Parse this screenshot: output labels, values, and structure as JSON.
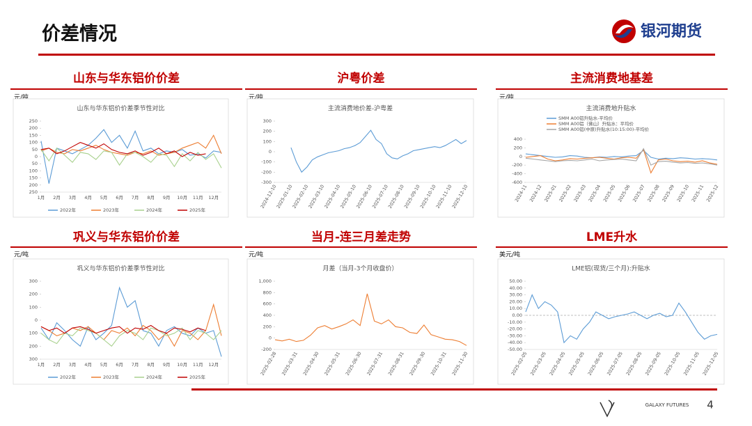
{
  "header": {
    "title": "价差情况",
    "brand": "银河期货"
  },
  "chart_data": [
    {
      "type": "line",
      "section": "山东与华东铝价价差",
      "unit": "元/吨",
      "title": "山东与华东铝价价差季节性对比",
      "categories": [
        "1月",
        null,
        "2月",
        null,
        "3月",
        null,
        "4月",
        null,
        "5月",
        null,
        "6月",
        null,
        "7月",
        null,
        "8月",
        null,
        "9月",
        null,
        "10月",
        null,
        "11月",
        null,
        "12月",
        null
      ],
      "ylim": [
        -250,
        250
      ],
      "yticks": [
        {
          "value": -250,
          "label": "250"
        },
        {
          "value": -200,
          "label": "200"
        },
        {
          "value": -150,
          "label": "150"
        },
        {
          "value": -100,
          "label": "100"
        },
        {
          "value": -50,
          "label": "50"
        },
        0,
        50,
        100,
        150,
        200,
        250
      ],
      "legend": "bottom",
      "series": [
        {
          "name": "2022年",
          "color": "#5b9bd5",
          "values": [
            110,
            -190,
            60,
            40,
            20,
            50,
            80,
            130,
            190,
            100,
            150,
            60,
            180,
            40,
            60,
            20,
            40,
            30,
            50,
            10,
            20,
            -10,
            40,
            30
          ]
        },
        {
          "name": "2023年",
          "color": "#ed7d31",
          "values": [
            40,
            60,
            30,
            20,
            50,
            40,
            60,
            80,
            50,
            30,
            20,
            10,
            30,
            20,
            40,
            10,
            20,
            30,
            60,
            80,
            100,
            60,
            150,
            20
          ]
        },
        {
          "name": "2024年",
          "color": "#a9d18e",
          "values": [
            50,
            -30,
            60,
            10,
            -40,
            30,
            20,
            -20,
            40,
            30,
            -60,
            20,
            30,
            0,
            -40,
            20,
            10,
            -70,
            20,
            -30,
            30,
            -20,
            20,
            -80
          ]
        },
        {
          "name": "2025年",
          "color": "#c00000",
          "values": [
            50,
            60,
            20,
            40,
            70,
            100,
            80,
            60,
            90,
            50,
            30,
            20,
            40,
            10,
            30,
            60,
            20,
            40,
            0,
            30,
            10,
            20,
            null,
            null
          ]
        }
      ]
    },
    {
      "type": "line",
      "section": "沪粤价差",
      "unit": "元/吨",
      "title": "主流消费地价差-沪粤差",
      "categories": [
        "2024-12-10",
        null,
        null,
        "2025-01-10",
        null,
        null,
        "2025-02-10",
        null,
        null,
        "2025-03-10",
        null,
        null,
        "2025-04-10",
        null,
        null,
        "2025-05-10",
        null,
        null,
        "2025-06-10",
        null,
        null,
        "2025-07-10",
        null,
        null,
        "2025-08-10",
        null,
        null,
        "2025-09-10",
        null,
        null,
        "2025-10-10",
        null,
        null,
        "2025-11-10",
        null,
        null,
        "2025-12-10"
      ],
      "ylim": [
        -300,
        300
      ],
      "yticks": [
        -300,
        -200,
        -100,
        0,
        100,
        200,
        300
      ],
      "color": "#5b9bd5",
      "values": [
        null,
        null,
        null,
        40,
        -100,
        -200,
        -150,
        -80,
        -50,
        -30,
        -10,
        0,
        10,
        30,
        40,
        60,
        90,
        150,
        210,
        120,
        80,
        -20,
        -60,
        -70,
        -40,
        -20,
        10,
        20,
        30,
        40,
        50,
        40,
        60,
        90,
        120,
        80,
        110
      ]
    },
    {
      "type": "line",
      "section": "主流消费地基差",
      "unit": "元/吨",
      "title": "主流消费地升贴水",
      "categories": [
        "2024-11",
        null,
        "2024-12",
        null,
        "2025-01",
        null,
        "2025-02",
        null,
        "2025-03",
        null,
        "2025-04",
        null,
        "2025-05",
        null,
        "2025-06",
        null,
        "2025-07",
        null,
        "2025-08",
        null,
        "2025-09",
        null,
        "2025-10",
        null,
        "2025-11",
        null,
        "2025-12"
      ],
      "ylim": [
        -600,
        400
      ],
      "yticks": [
        -600,
        -400,
        -200,
        0,
        200,
        400
      ],
      "legend": "top-left",
      "series": [
        {
          "name": "SMM A00铝升贴水-平均价",
          "color": "#5b9bd5",
          "values": [
            60,
            40,
            20,
            0,
            -20,
            -10,
            20,
            10,
            -20,
            -30,
            -10,
            -20,
            0,
            -10,
            10,
            20,
            140,
            -20,
            -60,
            -40,
            -50,
            -30,
            -40,
            -60,
            -50,
            -60,
            -80
          ]
        },
        {
          "name": "SMM A00铝（佛山）升贴水：平均价",
          "color": "#ed7d31",
          "values": [
            -20,
            0,
            20,
            -60,
            -100,
            -80,
            -50,
            -60,
            -40,
            -30,
            -20,
            -40,
            -60,
            -30,
            -20,
            -40,
            160,
            -380,
            -80,
            -60,
            -100,
            -120,
            -110,
            -130,
            -100,
            -150,
            -180
          ]
        },
        {
          "name": "SMM A00铝(中原)升贴水(10:15:00)-平均价",
          "color": "#a5a5a5",
          "values": [
            -40,
            -60,
            -80,
            -100,
            -120,
            -100,
            -90,
            -100,
            -80,
            -60,
            -100,
            -80,
            -70,
            -60,
            -80,
            -100,
            180,
            -200,
            -120,
            -110,
            -130,
            -150,
            -140,
            -160,
            -150,
            -170,
            -200
          ]
        }
      ]
    },
    {
      "type": "line",
      "section": "巩义与华东铝价价差",
      "unit": "元/吨",
      "title": "巩义与华东铝价价差季节性对比",
      "categories": [
        "1月",
        null,
        "2月",
        null,
        "3月",
        null,
        "4月",
        null,
        "5月",
        null,
        "6月",
        null,
        "7月",
        null,
        "8月",
        null,
        "9月",
        null,
        "10月",
        null,
        "11月",
        null,
        "12月",
        null
      ],
      "ylim": [
        -300,
        300
      ],
      "yticks": [
        {
          "value": -300,
          "label": "300"
        },
        {
          "value": -200,
          "label": "200"
        },
        {
          "value": -100,
          "label": "100"
        },
        0,
        100,
        200,
        300
      ],
      "legend": "bottom",
      "series": [
        {
          "name": "2022年",
          "color": "#5b9bd5",
          "values": [
            -60,
            -150,
            -20,
            -80,
            -150,
            -200,
            -50,
            -150,
            -100,
            -40,
            250,
            100,
            150,
            -80,
            -100,
            -200,
            -80,
            -50,
            -100,
            -120,
            -60,
            -100,
            -80,
            -280
          ]
        },
        {
          "name": "2023年",
          "color": "#ed7d31",
          "values": [
            -50,
            -80,
            -120,
            -100,
            -60,
            -80,
            -50,
            -100,
            -150,
            -80,
            -100,
            -60,
            -120,
            -40,
            -80,
            -150,
            -100,
            -200,
            -80,
            -100,
            -150,
            -80,
            120,
            -120
          ]
        },
        {
          "name": "2024年",
          "color": "#a9d18e",
          "values": [
            -100,
            -150,
            -180,
            -100,
            -120,
            -60,
            -80,
            -100,
            -150,
            -200,
            -120,
            -80,
            -100,
            -150,
            -60,
            -80,
            -120,
            -100,
            -60,
            -150,
            -80,
            -100,
            -150,
            -80
          ]
        },
        {
          "name": "2025年",
          "color": "#c00000",
          "values": [
            -50,
            -80,
            -60,
            -100,
            -60,
            -50,
            -70,
            -100,
            -80,
            -60,
            -50,
            -100,
            -60,
            -70,
            -40,
            -80,
            -100,
            -60,
            -70,
            -90,
            -60,
            -80,
            null,
            null
          ]
        }
      ]
    },
    {
      "type": "line",
      "section": "当月-连三月差走势",
      "unit": "元/吨",
      "title": "月差（当月-3个月收盘价）",
      "categories": [
        "2025-02-28",
        null,
        null,
        "2025-03-31",
        null,
        null,
        "2025-04-30",
        null,
        null,
        "2025-05-31",
        null,
        null,
        "2025-06-30",
        null,
        null,
        "2025-07-31",
        null,
        null,
        "2025-08-31",
        null,
        null,
        "2025-09-30",
        null,
        null,
        "2025-10-31",
        null,
        null,
        "2025-11-30"
      ],
      "ylim": [
        -200,
        1000
      ],
      "yticks": [
        -200,
        0,
        200,
        400,
        600,
        800,
        {
          "value": 1000,
          "label": "1,000"
        }
      ],
      "color": "#ed7d31",
      "values": [
        -30,
        -50,
        -20,
        -60,
        -40,
        50,
        180,
        220,
        160,
        200,
        250,
        320,
        220,
        780,
        300,
        250,
        320,
        200,
        180,
        100,
        80,
        230,
        60,
        20,
        -20,
        -30,
        -60,
        -130
      ]
    },
    {
      "type": "line",
      "section": "LME升水",
      "unit": "美元/吨",
      "title": "LME铝(现货/三个月):升贴水",
      "categories": [
        "2025-02-05",
        null,
        null,
        "2025-03-05",
        null,
        null,
        "2025-04-05",
        null,
        null,
        "2025-05-05",
        null,
        null,
        "2025-06-05",
        null,
        null,
        "2025-07-05",
        null,
        null,
        "2025-08-05",
        null,
        null,
        "2025-09-05",
        null,
        null,
        "2025-10-05",
        null,
        null,
        "2025-11-05",
        null,
        null,
        "2025-12-05"
      ],
      "ylim": [
        -50,
        50
      ],
      "yticks": [
        {
          "value": -50,
          "label": "-50.00"
        },
        {
          "value": -40,
          "label": "-40.00"
        },
        {
          "value": -30,
          "label": "-30.00"
        },
        {
          "value": -20,
          "label": "-20.00"
        },
        {
          "value": -10,
          "label": "-10.00"
        },
        {
          "value": 0,
          "label": "0.00"
        },
        {
          "value": 10,
          "label": "10.00"
        },
        {
          "value": 20,
          "label": "20.00"
        },
        {
          "value": 30,
          "label": "30.00"
        },
        {
          "value": 40,
          "label": "40.00"
        },
        {
          "value": 50,
          "label": "50.00"
        }
      ],
      "zero_line": true,
      "color": "#5b9bd5",
      "values": [
        5,
        30,
        10,
        20,
        15,
        5,
        -40,
        -30,
        -35,
        -20,
        -10,
        5,
        0,
        -5,
        -2,
        0,
        2,
        5,
        0,
        -5,
        0,
        3,
        -2,
        0,
        18,
        5,
        -10,
        -25,
        -35,
        -30,
        -28
      ]
    }
  ],
  "footer": {
    "brand": "GALAXY FUTURES",
    "page": "4"
  }
}
